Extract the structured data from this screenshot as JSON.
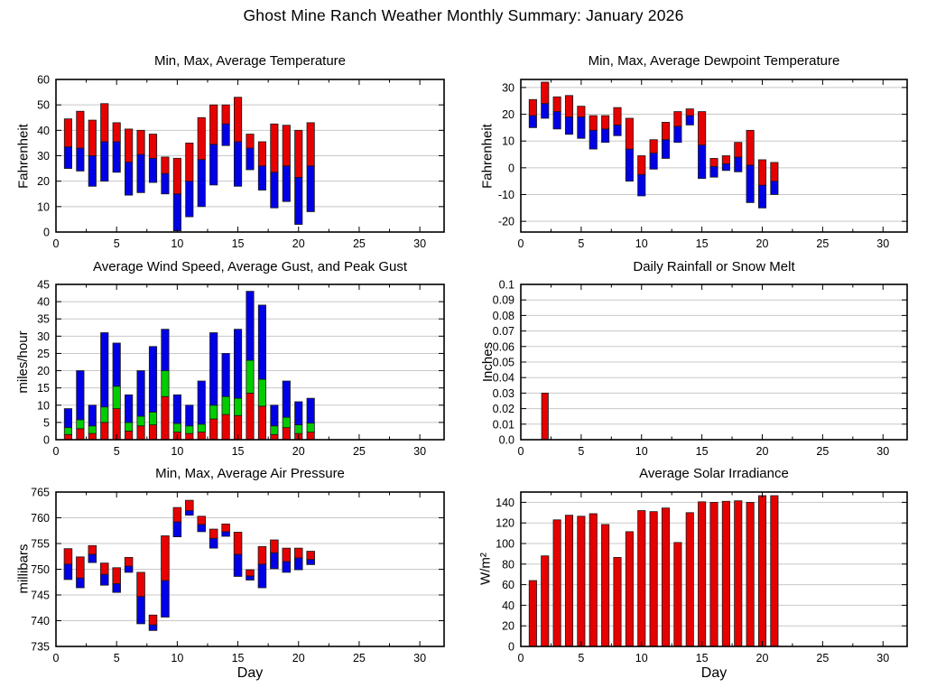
{
  "page_title": "Ghost Mine Ranch Weather Monthly Summary: January 2026",
  "chart_data": [
    {
      "id": "temperature",
      "type": "range-bar",
      "title": "Min, Max, Average Temperature",
      "ylabel": "Fahrenheit",
      "xlabel": "",
      "xlim": [
        0,
        32
      ],
      "ylim": [
        0,
        60
      ],
      "xticks": [
        0,
        5,
        10,
        15,
        20,
        25,
        30
      ],
      "yticks": {
        "values": [
          0,
          10,
          20,
          30,
          40,
          50,
          60
        ],
        "labels": [
          "0",
          "10",
          "20",
          "30",
          "40",
          "50",
          "60"
        ]
      },
      "grid": true,
      "colors": {
        "min_to_avg": "#0000e6",
        "avg_to_max": "#e60000"
      },
      "data": {
        "days": [
          1,
          2,
          3,
          4,
          5,
          6,
          7,
          8,
          9,
          10,
          11,
          12,
          13,
          14,
          15,
          16,
          17,
          18,
          19,
          20,
          21
        ],
        "min": [
          25,
          24,
          18,
          20,
          23.5,
          14.5,
          15.5,
          19.5,
          15,
          0.5,
          6,
          10,
          18.5,
          34,
          18,
          24.5,
          16.5,
          9.5,
          12,
          3,
          8
        ],
        "avg": [
          33.5,
          33,
          30,
          35.5,
          35.5,
          27.5,
          30.5,
          29,
          23,
          15,
          20,
          28.5,
          34.5,
          42.5,
          35.5,
          33,
          26,
          23.5,
          26,
          21.5,
          26
        ],
        "max": [
          44.5,
          47.5,
          44,
          50.5,
          43,
          40.5,
          40,
          38.5,
          29.5,
          29,
          35,
          45,
          50,
          50,
          53,
          38.5,
          35.5,
          42.5,
          42,
          40,
          43
        ]
      }
    },
    {
      "id": "dewpoint",
      "type": "range-bar",
      "title": "Min, Max, Average Dewpoint Temperature",
      "ylabel": "Fahrenheit",
      "xlabel": "",
      "xlim": [
        0,
        32
      ],
      "ylim": [
        -24,
        33
      ],
      "xticks": [
        0,
        5,
        10,
        15,
        20,
        25,
        30
      ],
      "yticks": {
        "values": [
          -20,
          -10,
          0,
          10,
          20,
          30
        ],
        "labels": [
          "-20",
          "-10",
          "0",
          "10",
          "20",
          "30"
        ]
      },
      "grid": true,
      "colors": {
        "min_to_avg": "#0000e6",
        "avg_to_max": "#e60000"
      },
      "data": {
        "days": [
          1,
          2,
          3,
          4,
          5,
          6,
          7,
          8,
          9,
          10,
          11,
          12,
          13,
          14,
          15,
          16,
          17,
          18,
          19,
          20,
          21
        ],
        "min": [
          15,
          18.5,
          14.5,
          12.5,
          11,
          7,
          9.5,
          12,
          -5,
          -10.5,
          -0.5,
          3.5,
          9.5,
          16,
          -4,
          -3.5,
          -1,
          -1.5,
          -13,
          -15,
          -10
        ],
        "avg": [
          19.5,
          24,
          21,
          19,
          19,
          14,
          14.5,
          16,
          7,
          -2.5,
          5.5,
          10.5,
          15.5,
          19.5,
          8.5,
          0.5,
          1.5,
          4,
          1,
          -6.5,
          -5
        ],
        "max": [
          25.5,
          32,
          26.5,
          27,
          23,
          19.5,
          19.5,
          22.5,
          18.5,
          4.5,
          10.5,
          17,
          21,
          22,
          21,
          3.5,
          4.5,
          9.5,
          14,
          3,
          2
        ]
      }
    },
    {
      "id": "wind",
      "type": "stacked-bar",
      "title": "Average Wind Speed, Average Gust, and Peak Gust",
      "ylabel": "miles/hour",
      "xlabel": "",
      "xlim": [
        0,
        32
      ],
      "ylim": [
        0,
        45
      ],
      "xticks": [
        0,
        5,
        10,
        15,
        20,
        25,
        30
      ],
      "yticks": {
        "values": [
          0,
          5,
          10,
          15,
          20,
          25,
          30,
          35,
          40,
          45
        ],
        "labels": [
          "0",
          "5",
          "10",
          "15",
          "20",
          "25",
          "30",
          "35",
          "40",
          "45"
        ]
      },
      "grid": true,
      "colors": {
        "avg_wind_speed": "#e60000",
        "avg_gust": "#00cc00",
        "peak_gust": "#0000e6"
      },
      "data": {
        "days": [
          1,
          2,
          3,
          4,
          5,
          6,
          7,
          8,
          9,
          10,
          11,
          12,
          13,
          14,
          15,
          16,
          17,
          18,
          19,
          20,
          21
        ],
        "avg_wind_speed": [
          1.5,
          3.2,
          1.8,
          5,
          9,
          2.5,
          4,
          4.3,
          12.5,
          2.2,
          1.8,
          2.2,
          6,
          7.3,
          7,
          13.5,
          9.7,
          1.5,
          3.5,
          1.8,
          2.2
        ],
        "avg_gust": [
          3.5,
          5.8,
          4,
          9.5,
          15.5,
          5,
          6.8,
          8,
          20,
          4.7,
          4,
          4.5,
          10,
          12.5,
          12,
          23,
          17.5,
          4,
          6.5,
          4.3,
          4.8
        ],
        "peak_gust": [
          9,
          20,
          10,
          31,
          28,
          13,
          20,
          27,
          32,
          13,
          10,
          17,
          31,
          25,
          32,
          43,
          39,
          10,
          17,
          11,
          12
        ]
      }
    },
    {
      "id": "rainfall",
      "type": "bar",
      "title": "Daily Rainfall or Snow Melt",
      "ylabel": "Inches",
      "xlabel": "",
      "xlim": [
        0,
        32
      ],
      "ylim": [
        0,
        0.1
      ],
      "xticks": [
        0,
        5,
        10,
        15,
        20,
        25,
        30
      ],
      "yticks": {
        "values": [
          0,
          0.01,
          0.02,
          0.03,
          0.04,
          0.05,
          0.06,
          0.07,
          0.08,
          0.09,
          0.1
        ],
        "labels": [
          "0.0",
          "0.01",
          "0.02",
          "0.03",
          "0.04",
          "0.05",
          "0.06",
          "0.07",
          "0.08",
          "0.09",
          "0.1"
        ]
      },
      "grid": true,
      "colors": {
        "value": "#e60000"
      },
      "data": {
        "days": [
          2
        ],
        "values": [
          0.03
        ]
      }
    },
    {
      "id": "pressure",
      "type": "range-bar",
      "title": "Min, Max, Average Air Pressure",
      "ylabel": "millibars",
      "xlabel": "Day",
      "xlim": [
        0,
        32
      ],
      "ylim": [
        735,
        765
      ],
      "xticks": [
        0,
        5,
        10,
        15,
        20,
        25,
        30
      ],
      "yticks": {
        "values": [
          735,
          740,
          745,
          750,
          755,
          760,
          765
        ],
        "labels": [
          "735",
          "740",
          "745",
          "750",
          "755",
          "760",
          "765"
        ]
      },
      "grid": true,
      "colors": {
        "min_to_avg": "#0000e6",
        "avg_to_max": "#e60000"
      },
      "data": {
        "days": [
          1,
          2,
          3,
          4,
          5,
          6,
          7,
          8,
          9,
          10,
          11,
          12,
          13,
          14,
          15,
          16,
          17,
          18,
          19,
          20,
          21
        ],
        "min": [
          748,
          746.4,
          751.3,
          746.9,
          745.5,
          749.4,
          739.4,
          738.1,
          740.7,
          756.3,
          760.5,
          757.3,
          754.1,
          756.4,
          748.6,
          747.9,
          746.4,
          750.1,
          749.4,
          749.9,
          750.9
        ],
        "avg": [
          751,
          748.3,
          752.9,
          749,
          747.2,
          750.6,
          744.7,
          739.2,
          747.8,
          759.2,
          761.4,
          758.7,
          756,
          757.3,
          752.9,
          748.7,
          751,
          753.2,
          751.5,
          752.2,
          751.9
        ],
        "max": [
          754,
          752.4,
          754.6,
          751.2,
          750.3,
          752.3,
          749.4,
          741.1,
          756.5,
          762,
          763.4,
          760.3,
          757.8,
          758.8,
          757.2,
          749.9,
          754.4,
          755.7,
          754.1,
          754.1,
          753.5
        ]
      }
    },
    {
      "id": "solar",
      "type": "bar",
      "title": "Average Solar Irradiance",
      "ylabel": "W/m²",
      "xlabel": "Day",
      "xlim": [
        0,
        32
      ],
      "ylim": [
        0,
        150
      ],
      "xticks": [
        0,
        5,
        10,
        15,
        20,
        25,
        30
      ],
      "yticks": {
        "values": [
          0,
          20,
          40,
          60,
          80,
          100,
          120,
          140
        ],
        "labels": [
          "0",
          "20",
          "40",
          "60",
          "80",
          "100",
          "120",
          "140"
        ]
      },
      "grid": true,
      "colors": {
        "value": "#e60000"
      },
      "data": {
        "days": [
          1,
          2,
          3,
          4,
          5,
          6,
          7,
          8,
          9,
          10,
          11,
          12,
          13,
          14,
          15,
          16,
          17,
          18,
          19,
          20,
          21
        ],
        "values": [
          64,
          88,
          123,
          127.5,
          126.5,
          129,
          118.5,
          86.5,
          111.5,
          132,
          131,
          134.5,
          101,
          130,
          140.5,
          140,
          141,
          141.5,
          140,
          146.5,
          146.5
        ]
      }
    }
  ]
}
